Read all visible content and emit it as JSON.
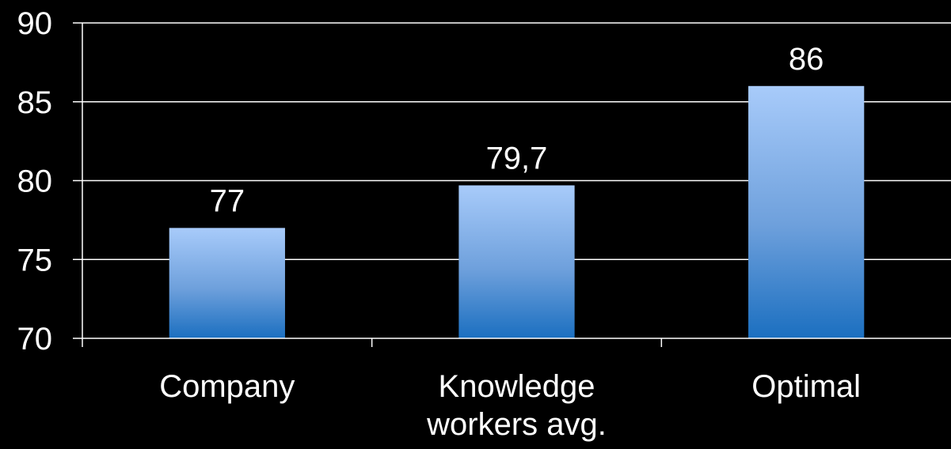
{
  "chart_data": {
    "type": "bar",
    "categories": [
      [
        "Company"
      ],
      [
        "Knowledge",
        "workers avg."
      ],
      [
        "Optimal"
      ]
    ],
    "values": [
      77,
      79.7,
      86
    ],
    "data_labels": [
      "77",
      "79,7",
      "86"
    ],
    "ylim": [
      70,
      90
    ],
    "yticks": [
      70,
      75,
      80,
      85,
      90
    ],
    "grid": true,
    "title": "",
    "xlabel": "",
    "ylabel": "",
    "colors": {
      "background": "#000000",
      "bar_top": "#a8cbfa",
      "bar_bottom": "#1b6fc0",
      "grid": "#ffffff",
      "text": "#ffffff"
    }
  }
}
